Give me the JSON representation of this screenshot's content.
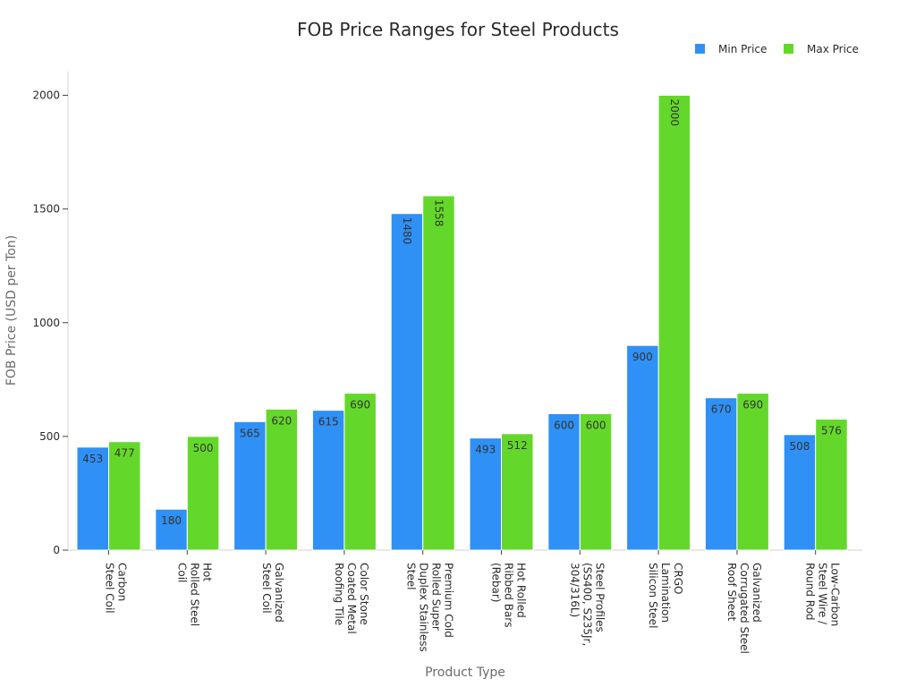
{
  "chart_data": {
    "type": "bar",
    "title": "FOB Price Ranges for Steel Products",
    "xlabel": "Product Type",
    "ylabel": "FOB Price (USD per Ton)",
    "ylim": [
      0,
      2100
    ],
    "yticks": [
      0,
      500,
      1000,
      1500,
      2000
    ],
    "grid": false,
    "legend_position": "top-right",
    "categories": [
      [
        "Carbon",
        "Steel Coil"
      ],
      [
        "Hot",
        "Rolled Steel",
        "Coil"
      ],
      [
        "Galvanized",
        "Steel Coil"
      ],
      [
        "Color Stone",
        "Coated Metal",
        "Roofing Tile"
      ],
      [
        "Premium Cold",
        "Rolled Super",
        "Duplex Stainless",
        "Steel"
      ],
      [
        "Hot Rolled",
        "Ribbed Bars",
        "(Rebar)"
      ],
      [
        "Steel Profiles",
        "(SS400, S235Jr,",
        "304/316L)"
      ],
      [
        "CRGO",
        "Lamination",
        "Silicon Steel"
      ],
      [
        "Galvanized",
        "Corrugated Steel",
        "Roof Sheet"
      ],
      [
        "Low-Carbon",
        "Steel Wire /",
        "Round Rod"
      ]
    ],
    "series": [
      {
        "name": "Min Price",
        "color": "#2f90f5",
        "values": [
          453,
          180,
          565,
          615,
          1480,
          493,
          600,
          900,
          670,
          508
        ]
      },
      {
        "name": "Max Price",
        "color": "#64d82a",
        "values": [
          477,
          500,
          620,
          690,
          1558,
          512,
          600,
          2000,
          690,
          576
        ]
      }
    ]
  }
}
